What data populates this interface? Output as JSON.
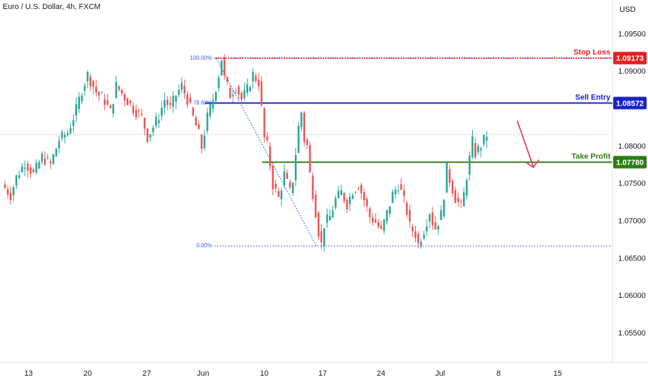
{
  "header": {
    "title": "Euro / U.S. Dollar, 4h, FXCM",
    "currency": "USD"
  },
  "chart_data": {
    "type": "candlestick",
    "title": "Euro / U.S. Dollar, 4h, FXCM",
    "ylim": [
      1.051,
      1.0995
    ],
    "y_ticks": [
      {
        "value": 1.095,
        "label": "1.09500"
      },
      {
        "value": 1.09,
        "label": "1.09000"
      },
      {
        "value": 1.08,
        "label": "1.08000"
      },
      {
        "value": 1.075,
        "label": "1.07500"
      },
      {
        "value": 1.07,
        "label": "1.07000"
      },
      {
        "value": 1.065,
        "label": "1.06500"
      },
      {
        "value": 1.06,
        "label": "1.06000"
      },
      {
        "value": 1.055,
        "label": "1.05500"
      }
    ],
    "x_ticks": [
      "13",
      "20",
      "27",
      "Jun",
      "10",
      "17",
      "24",
      "Jul",
      "8",
      "15"
    ],
    "current_price": 1.0815,
    "levels": [
      {
        "name": "Stop Loss",
        "price": 1.09173,
        "label": "1.09173",
        "color": "#e91e1e",
        "style": "dotted"
      },
      {
        "name": "Sell Entry",
        "price": 1.08572,
        "label": "1.08572",
        "color": "#1a22c8",
        "style": "solid"
      },
      {
        "name": "Take Profit",
        "price": 1.0778,
        "label": "1.07780",
        "color": "#2e7d12",
        "style": "solid"
      }
    ],
    "fib_levels": [
      {
        "label": "100.00%",
        "price": 1.0917
      },
      {
        "label": "78.60%",
        "price": 1.0857
      },
      {
        "label": "0.00%",
        "price": 1.0666
      }
    ],
    "colors": {
      "up": "#26a69a",
      "down": "#ef5350",
      "fib": "#2962ff",
      "arrow": "#e04050"
    },
    "path": [
      [
        0,
        1.0748
      ],
      [
        3,
        1.0734
      ],
      [
        5,
        1.0758
      ],
      [
        8,
        1.0778
      ],
      [
        11,
        1.0762
      ],
      [
        14,
        1.0785
      ],
      [
        17,
        1.0775
      ],
      [
        20,
        1.0808
      ],
      [
        23,
        1.0818
      ],
      [
        26,
        1.0848
      ],
      [
        28,
        1.0875
      ],
      [
        30,
        1.0895
      ],
      [
        33,
        1.0872
      ],
      [
        36,
        1.086
      ],
      [
        38,
        1.0845
      ],
      [
        40,
        1.088
      ],
      [
        43,
        1.0865
      ],
      [
        46,
        1.085
      ],
      [
        49,
        1.0838
      ],
      [
        51,
        1.0812
      ],
      [
        53,
        1.0825
      ],
      [
        55,
        1.084
      ],
      [
        57,
        1.0862
      ],
      [
        59,
        1.085
      ],
      [
        61,
        1.0868
      ],
      [
        63,
        1.088
      ],
      [
        65,
        1.0862
      ],
      [
        67,
        1.0838
      ],
      [
        69,
        1.0815
      ],
      [
        70,
        1.0798
      ],
      [
        72,
        1.0838
      ],
      [
        74,
        1.0862
      ],
      [
        76,
        1.0895
      ],
      [
        77,
        1.0917
      ],
      [
        78,
        1.089
      ],
      [
        80,
        1.0868
      ],
      [
        82,
        1.088
      ],
      [
        84,
        1.0862
      ],
      [
        86,
        1.0875
      ],
      [
        88,
        1.0895
      ],
      [
        90,
        1.0885
      ],
      [
        91,
        1.085
      ],
      [
        92,
        1.081
      ],
      [
        93,
        1.08
      ],
      [
        94,
        1.0775
      ],
      [
        95,
        1.0748
      ],
      [
        97,
        1.073
      ],
      [
        99,
        1.0762
      ],
      [
        101,
        1.0738
      ],
      [
        102,
        1.0755
      ],
      [
        104,
        1.0825
      ],
      [
        105,
        1.0845
      ],
      [
        106,
        1.0808
      ],
      [
        107,
        1.08
      ],
      [
        108,
        1.0762
      ],
      [
        110,
        1.0712
      ],
      [
        111,
        1.0685
      ],
      [
        112,
        1.0668
      ],
      [
        113,
        1.0695
      ],
      [
        115,
        1.0705
      ],
      [
        117,
        1.0728
      ],
      [
        119,
        1.0738
      ],
      [
        121,
        1.0722
      ],
      [
        123,
        1.074
      ],
      [
        125,
        1.0748
      ],
      [
        127,
        1.0728
      ],
      [
        129,
        1.0705
      ],
      [
        131,
        1.0698
      ],
      [
        133,
        1.0685
      ],
      [
        135,
        1.071
      ],
      [
        137,
        1.0735
      ],
      [
        139,
        1.0748
      ],
      [
        140,
        1.0738
      ],
      [
        142,
        1.0712
      ],
      [
        143,
        1.0692
      ],
      [
        145,
        1.0682
      ],
      [
        146,
        1.0668
      ],
      [
        148,
        1.0688
      ],
      [
        150,
        1.0712
      ],
      [
        151,
        1.0698
      ],
      [
        152,
        1.069
      ],
      [
        154,
        1.0708
      ],
      [
        155,
        1.0735
      ],
      [
        156,
        1.077
      ],
      [
        157,
        1.0755
      ],
      [
        159,
        1.073
      ],
      [
        161,
        1.0718
      ],
      [
        162,
        1.0735
      ],
      [
        163,
        1.076
      ],
      [
        165,
        1.0805
      ],
      [
        166,
        1.079
      ],
      [
        168,
        1.08
      ],
      [
        170,
        1.0815
      ]
    ]
  }
}
